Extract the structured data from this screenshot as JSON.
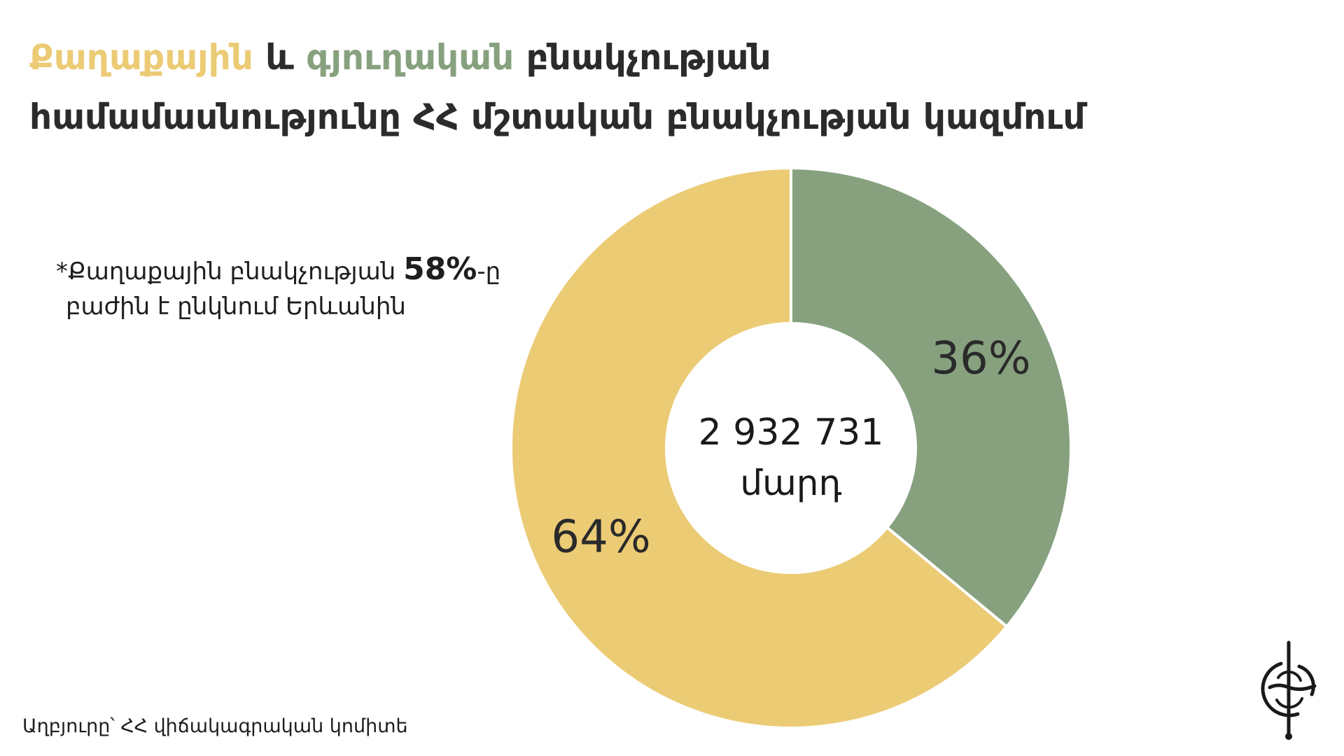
{
  "title": {
    "line1_part1": "Քաղաքային",
    "line1_part2": " և ",
    "line1_part3": "գյուղական",
    "line1_part4": " բնակչության",
    "line2": "համամասնությունը ՀՀ մշտական բնակչության կազմում"
  },
  "note": {
    "line1_prefix": "*Քաղաքային բնակչության ",
    "line1_pct": "58%",
    "line1_suffix": "-ը",
    "line2": "բաժին է ընկնում Երևանին"
  },
  "source": "Աղբյուրը՝ ՀՀ վիճակագրական կոմիտե",
  "chart_data": {
    "type": "pie",
    "donut": true,
    "categories": [
      "Քաղաքային",
      "գյուղական"
    ],
    "values": [
      64,
      36
    ],
    "labels": [
      "64%",
      "36%"
    ],
    "colors": [
      "#ECCB75",
      "#87A17F"
    ],
    "center_value": "2 932 731",
    "center_unit": "մարդ"
  },
  "colors": {
    "urban": "#ECCB75",
    "rural": "#87A17F",
    "title_text": "#2b2b2b"
  },
  "icons": {
    "logo": "brand-logo-icon"
  }
}
